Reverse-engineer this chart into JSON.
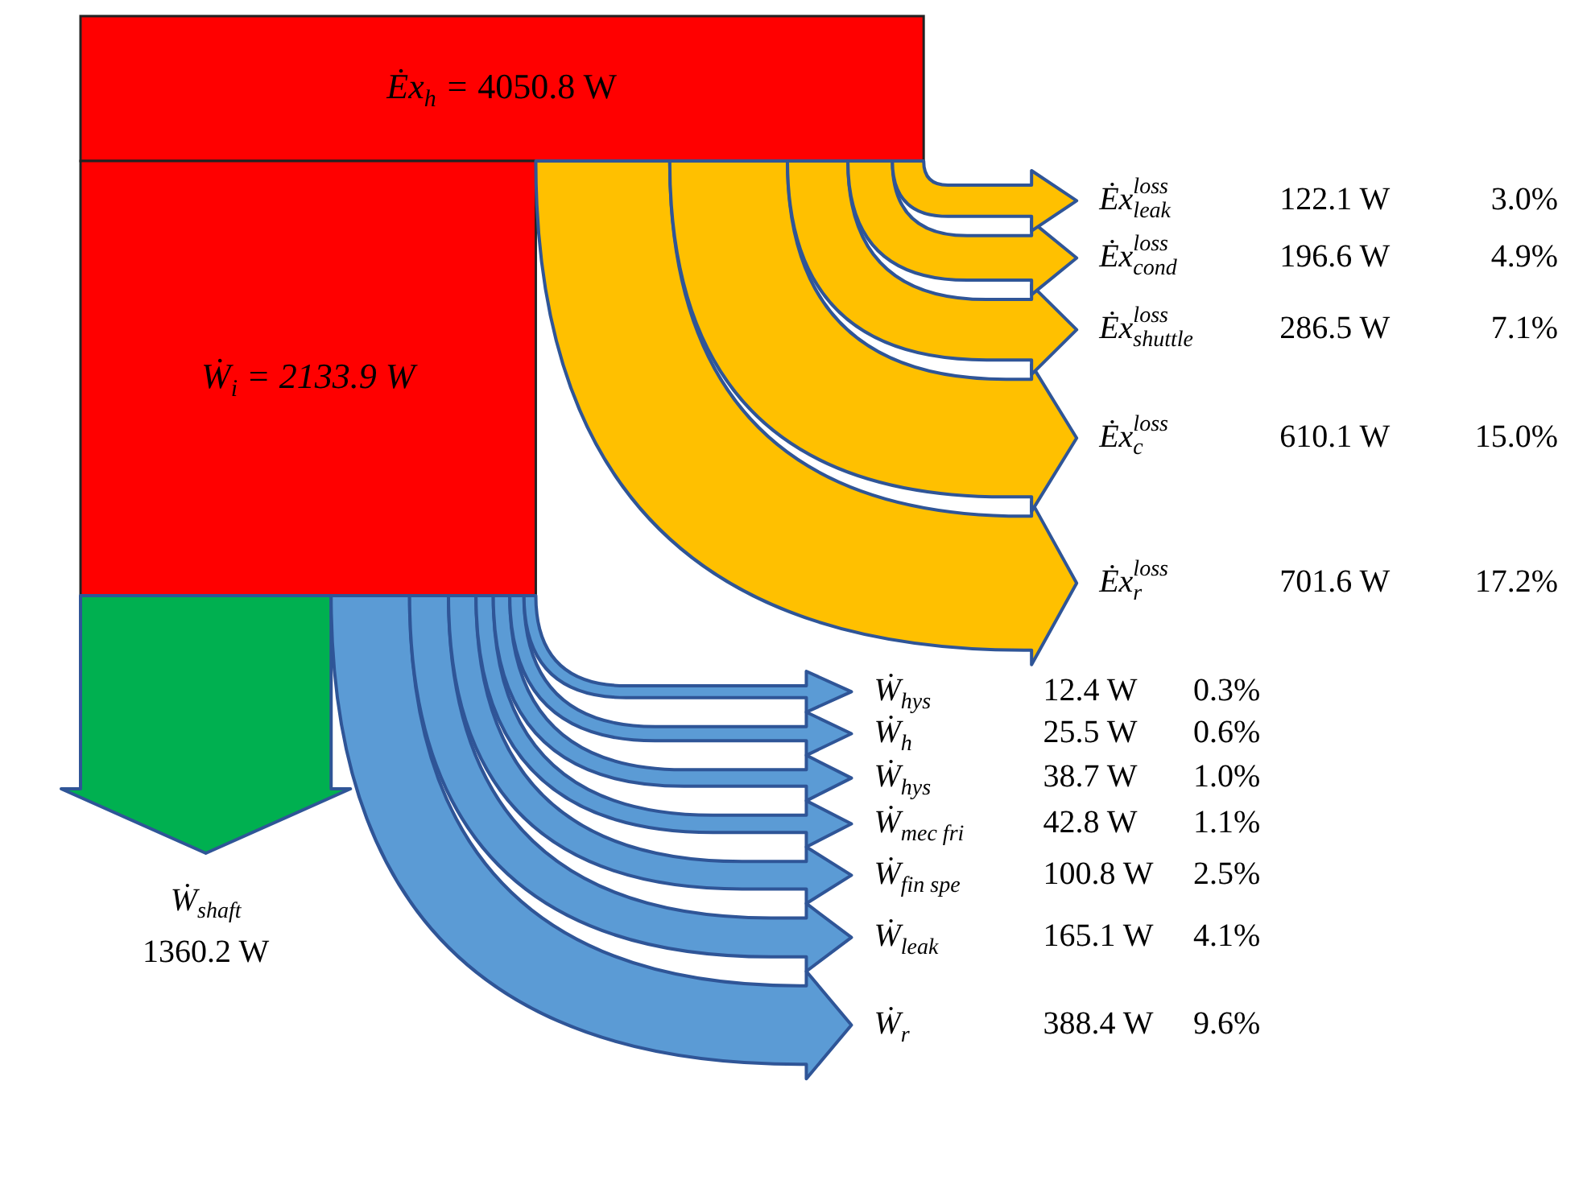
{
  "chart_data": {
    "type": "other",
    "categories": [
      "Ėx$_{h}$ =",
      "Ẇ$_{i}$ =",
      "Ėx$^{loss}$$_{leak}$",
      "Ėx$^{loss}$$_{cond}$",
      "Ėx$^{loss}$$_{shuttle}$",
      "Ėx$^{loss}$$_{c}$",
      "Ėx$^{loss}$$_{r}$",
      "Ẇ$_{shaft}$",
      "Ẇ$_{hys}$",
      "Ẇ$_{h}$",
      "Ẇ$_{hys}$",
      "Ẇ$_{mec fri}$",
      "Ẇ$_{fin spe}$",
      "Ẇ$_{leak}$",
      "Ẇ$_{r}$"
    ],
    "values": [
      4050.8,
      2133.9,
      122.1,
      196.6,
      286.5,
      610.1,
      701.6,
      1360.2,
      12.4,
      25.5,
      38.7,
      42.8,
      100.8,
      165.1,
      388.4
    ],
    "colors": [
      "#ff0000",
      "#ff0000",
      "#ffc000",
      "#ffc000",
      "#ffc000",
      "#ffc000",
      "#ffc000",
      "#00b050",
      "#5b9bd5",
      "#5b9bd5",
      "#5b9bd5",
      "#5b9bd5",
      "#5b9bd5",
      "#5b9bd5",
      "#5b9bd5"
    ],
    "value_labels": [
      "4050.8 W",
      "2133.9 W",
      "122.1 W",
      "196.6 W",
      "286.5 W",
      "610.1 W",
      "701.6 W",
      "1360.2 W",
      "12.4 W",
      "25.5 W",
      "38.7 W",
      "42.8 W",
      "100.8 W",
      "165.1 W",
      "388.4 W"
    ],
    "annotations": [
      "3.0%",
      "4.9%",
      "7.1%",
      "15.0%",
      "17.2%",
      "0.3%",
      "0.6%",
      "1.0%",
      "1.1%",
      "2.5%",
      "4.1%",
      "9.6%"
    ]
  }
}
